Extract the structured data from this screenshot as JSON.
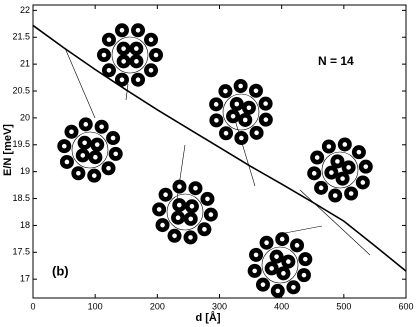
{
  "chart_data": {
    "type": "line",
    "x": [
      0,
      50,
      100,
      150,
      200,
      250,
      300,
      350,
      400,
      450,
      500,
      550,
      600
    ],
    "values": [
      21.72,
      21.3,
      20.9,
      20.52,
      20.15,
      19.8,
      19.45,
      19.1,
      18.77,
      18.43,
      18.08,
      17.62,
      17.15
    ],
    "color": "#000000",
    "xlim": [
      0,
      600
    ],
    "xticks": [
      0,
      100,
      200,
      300,
      400,
      500,
      600
    ],
    "ylim": [
      16.65,
      22.1
    ],
    "yticks": [
      17,
      17.5,
      18,
      18.5,
      19,
      19.5,
      20,
      20.5,
      21,
      21.5,
      22
    ],
    "xlabel": "d [Å]",
    "ylabel": "E/N [meV]",
    "annotations": [
      "N = 14",
      "(b)"
    ]
  }
}
